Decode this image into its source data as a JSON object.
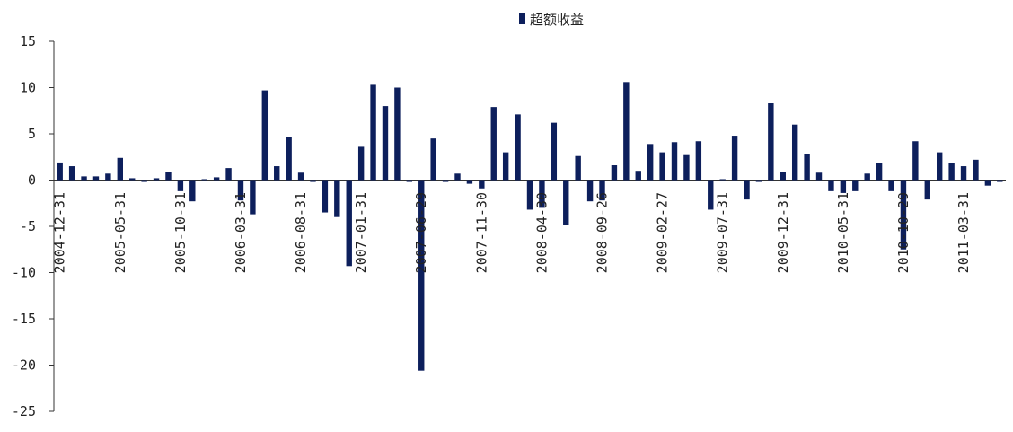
{
  "chart_data": {
    "type": "bar",
    "series": [
      {
        "name": "超额收益",
        "color": "#0d1f5c",
        "values": [
          1.9,
          1.5,
          0.4,
          0.4,
          0.7,
          2.4,
          0.2,
          -0.2,
          0.2,
          0.9,
          -1.2,
          -2.3,
          0.1,
          0.3,
          1.3,
          -2.2,
          -3.7,
          9.7,
          1.5,
          4.7,
          0.8,
          -0.2,
          -3.5,
          -4.0,
          -9.3,
          3.6,
          10.3,
          8.0,
          10.0,
          -0.2,
          -20.6,
          4.5,
          -0.2,
          0.7,
          -0.4,
          -0.9,
          7.9,
          3.0,
          7.1,
          -3.2,
          -3.0,
          6.2,
          -4.9,
          2.6,
          -2.3,
          -2.2,
          1.6,
          10.6,
          1.0,
          3.9,
          3.0,
          4.1,
          2.7,
          4.2,
          -3.2,
          0.1,
          4.8,
          -2.1,
          -0.2,
          8.3,
          0.9,
          6.0,
          2.8,
          0.8,
          -1.2,
          -1.4,
          -1.2,
          0.7,
          1.8,
          -1.2,
          -7.5,
          4.2,
          -2.1,
          3.0,
          1.8,
          1.5,
          2.2,
          -0.6,
          -0.2
        ]
      }
    ],
    "categories": [
      "2004-12-31",
      null,
      null,
      null,
      null,
      "2005-05-31",
      null,
      null,
      null,
      null,
      "2005-10-31",
      null,
      null,
      null,
      null,
      "2006-03-31",
      null,
      null,
      null,
      null,
      "2006-08-31",
      null,
      null,
      null,
      null,
      "2007-01-31",
      null,
      null,
      null,
      null,
      "2007-06-29",
      null,
      null,
      null,
      null,
      "2007-11-30",
      null,
      null,
      null,
      null,
      "2008-04-30",
      null,
      null,
      null,
      null,
      "2008-09-26",
      null,
      null,
      null,
      null,
      "2009-02-27",
      null,
      null,
      null,
      null,
      "2009-07-31",
      null,
      null,
      null,
      null,
      "2009-12-31",
      null,
      null,
      null,
      null,
      "2010-05-31",
      null,
      null,
      null,
      null,
      "2010-10-29",
      null,
      null,
      null,
      null,
      "2011-03-31",
      null,
      null,
      null
    ],
    "ylim": [
      -25,
      15
    ],
    "yticks": [
      15,
      10,
      5,
      0,
      -5,
      -10,
      -15,
      -20,
      -25
    ],
    "legend": "top"
  }
}
